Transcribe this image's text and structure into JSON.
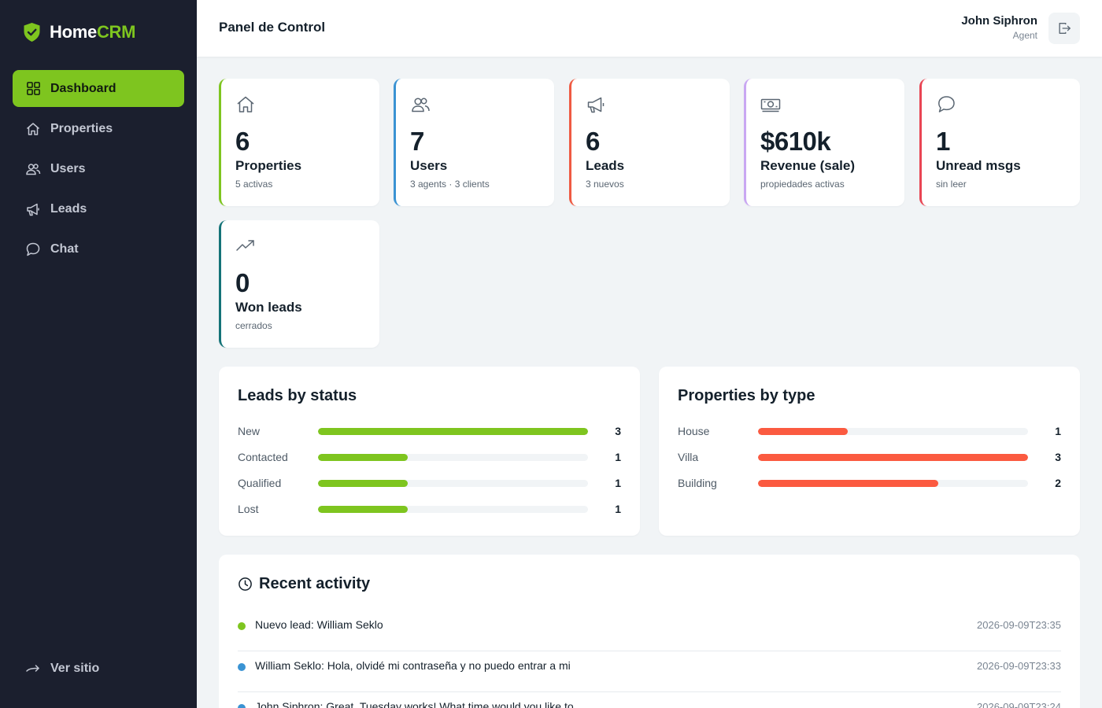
{
  "brand": {
    "name_part1": "Home",
    "name_part2": "CRM",
    "accent_color": "#7ec51f",
    "icon": "shield-check-icon"
  },
  "sidebar": {
    "items": [
      {
        "label": "Dashboard",
        "icon": "dashboard-grid-icon",
        "active": true
      },
      {
        "label": "Properties",
        "icon": "home-icon",
        "active": false
      },
      {
        "label": "Users",
        "icon": "users-icon",
        "active": false
      },
      {
        "label": "Leads",
        "icon": "megaphone-icon",
        "active": false
      },
      {
        "label": "Chat",
        "icon": "chat-icon",
        "active": false
      }
    ],
    "footer_link": {
      "label": "Ver sitio",
      "icon": "arrow-right-icon"
    }
  },
  "header": {
    "title": "Panel de Control",
    "user_name": "John Siphron",
    "user_role": "Agent",
    "logout_icon": "logout-icon"
  },
  "stats": [
    {
      "value": "6",
      "label": "Properties",
      "sub": "5 activas",
      "icon": "home-icon",
      "color": "#7ec51f"
    },
    {
      "value": "7",
      "label": "Users",
      "sub": "3 agents · 3 clients",
      "icon": "users-icon",
      "color": "#3a93d3"
    },
    {
      "value": "6",
      "label": "Leads",
      "sub": "3 nuevos",
      "icon": "megaphone-icon",
      "color": "#ef5a42"
    },
    {
      "value": "$610k",
      "label": "Revenue (sale)",
      "sub": "propiedades activas",
      "icon": "cash-icon",
      "color": "#c9a7f2"
    },
    {
      "value": "1",
      "label": "Unread msgs",
      "sub": "sin leer",
      "icon": "chat-icon",
      "color": "#e94553"
    },
    {
      "value": "0",
      "label": "Won leads",
      "sub": "cerrados",
      "icon": "trend-up-icon",
      "color": "#147378"
    }
  ],
  "leads_by_status": {
    "title": "Leads by status",
    "color": "#7ec51f",
    "max": 3,
    "rows": [
      {
        "label": "New",
        "value": 3
      },
      {
        "label": "Contacted",
        "value": 1
      },
      {
        "label": "Qualified",
        "value": 1
      },
      {
        "label": "Lost",
        "value": 1
      }
    ]
  },
  "properties_by_type": {
    "title": "Properties by type",
    "color": "#fb5a40",
    "max": 3,
    "rows": [
      {
        "label": "House",
        "value": 1
      },
      {
        "label": "Villa",
        "value": 3
      },
      {
        "label": "Building",
        "value": 2
      }
    ]
  },
  "activity": {
    "title": "Recent activity",
    "icon": "clock-icon",
    "items": [
      {
        "text": "Nuevo lead: William Seklo",
        "time": "2026-09-09T23:35",
        "color": "#7ec51f"
      },
      {
        "text": "William Seklo: Hola, olvidé mi contraseña y no puedo entrar a mi",
        "time": "2026-09-09T23:33",
        "color": "#3a93d3"
      },
      {
        "text": "John Siphron: Great, Tuesday works! What time would you like to",
        "time": "2026-09-09T23:24",
        "color": "#3a93d3"
      }
    ]
  }
}
